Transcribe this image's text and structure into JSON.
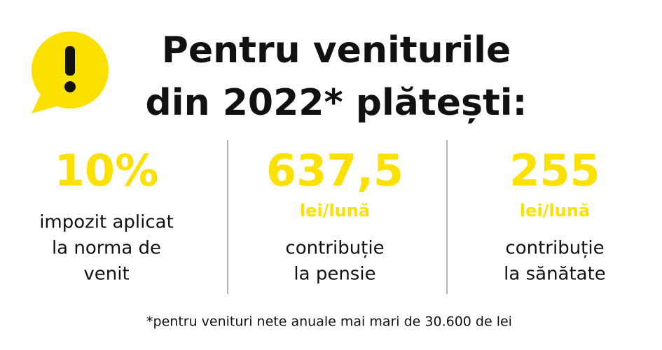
{
  "title": {
    "lines": [
      "Pentru veniturile",
      "din 2022* plătești:"
    ]
  },
  "columns": [
    {
      "value": "10%",
      "lines": [
        "impozit aplicat",
        "la norma de",
        "venit"
      ]
    },
    {
      "value": "637,5",
      "unit": "lei/lună",
      "lines": [
        "contribuție",
        "la pensie"
      ]
    },
    {
      "value": "255",
      "unit": "lei/lună",
      "lines": [
        "contribuție",
        "la sănătate"
      ]
    }
  ],
  "footnote": "*pentru venituri nete anuale mai mari de 30.600 de lei"
}
